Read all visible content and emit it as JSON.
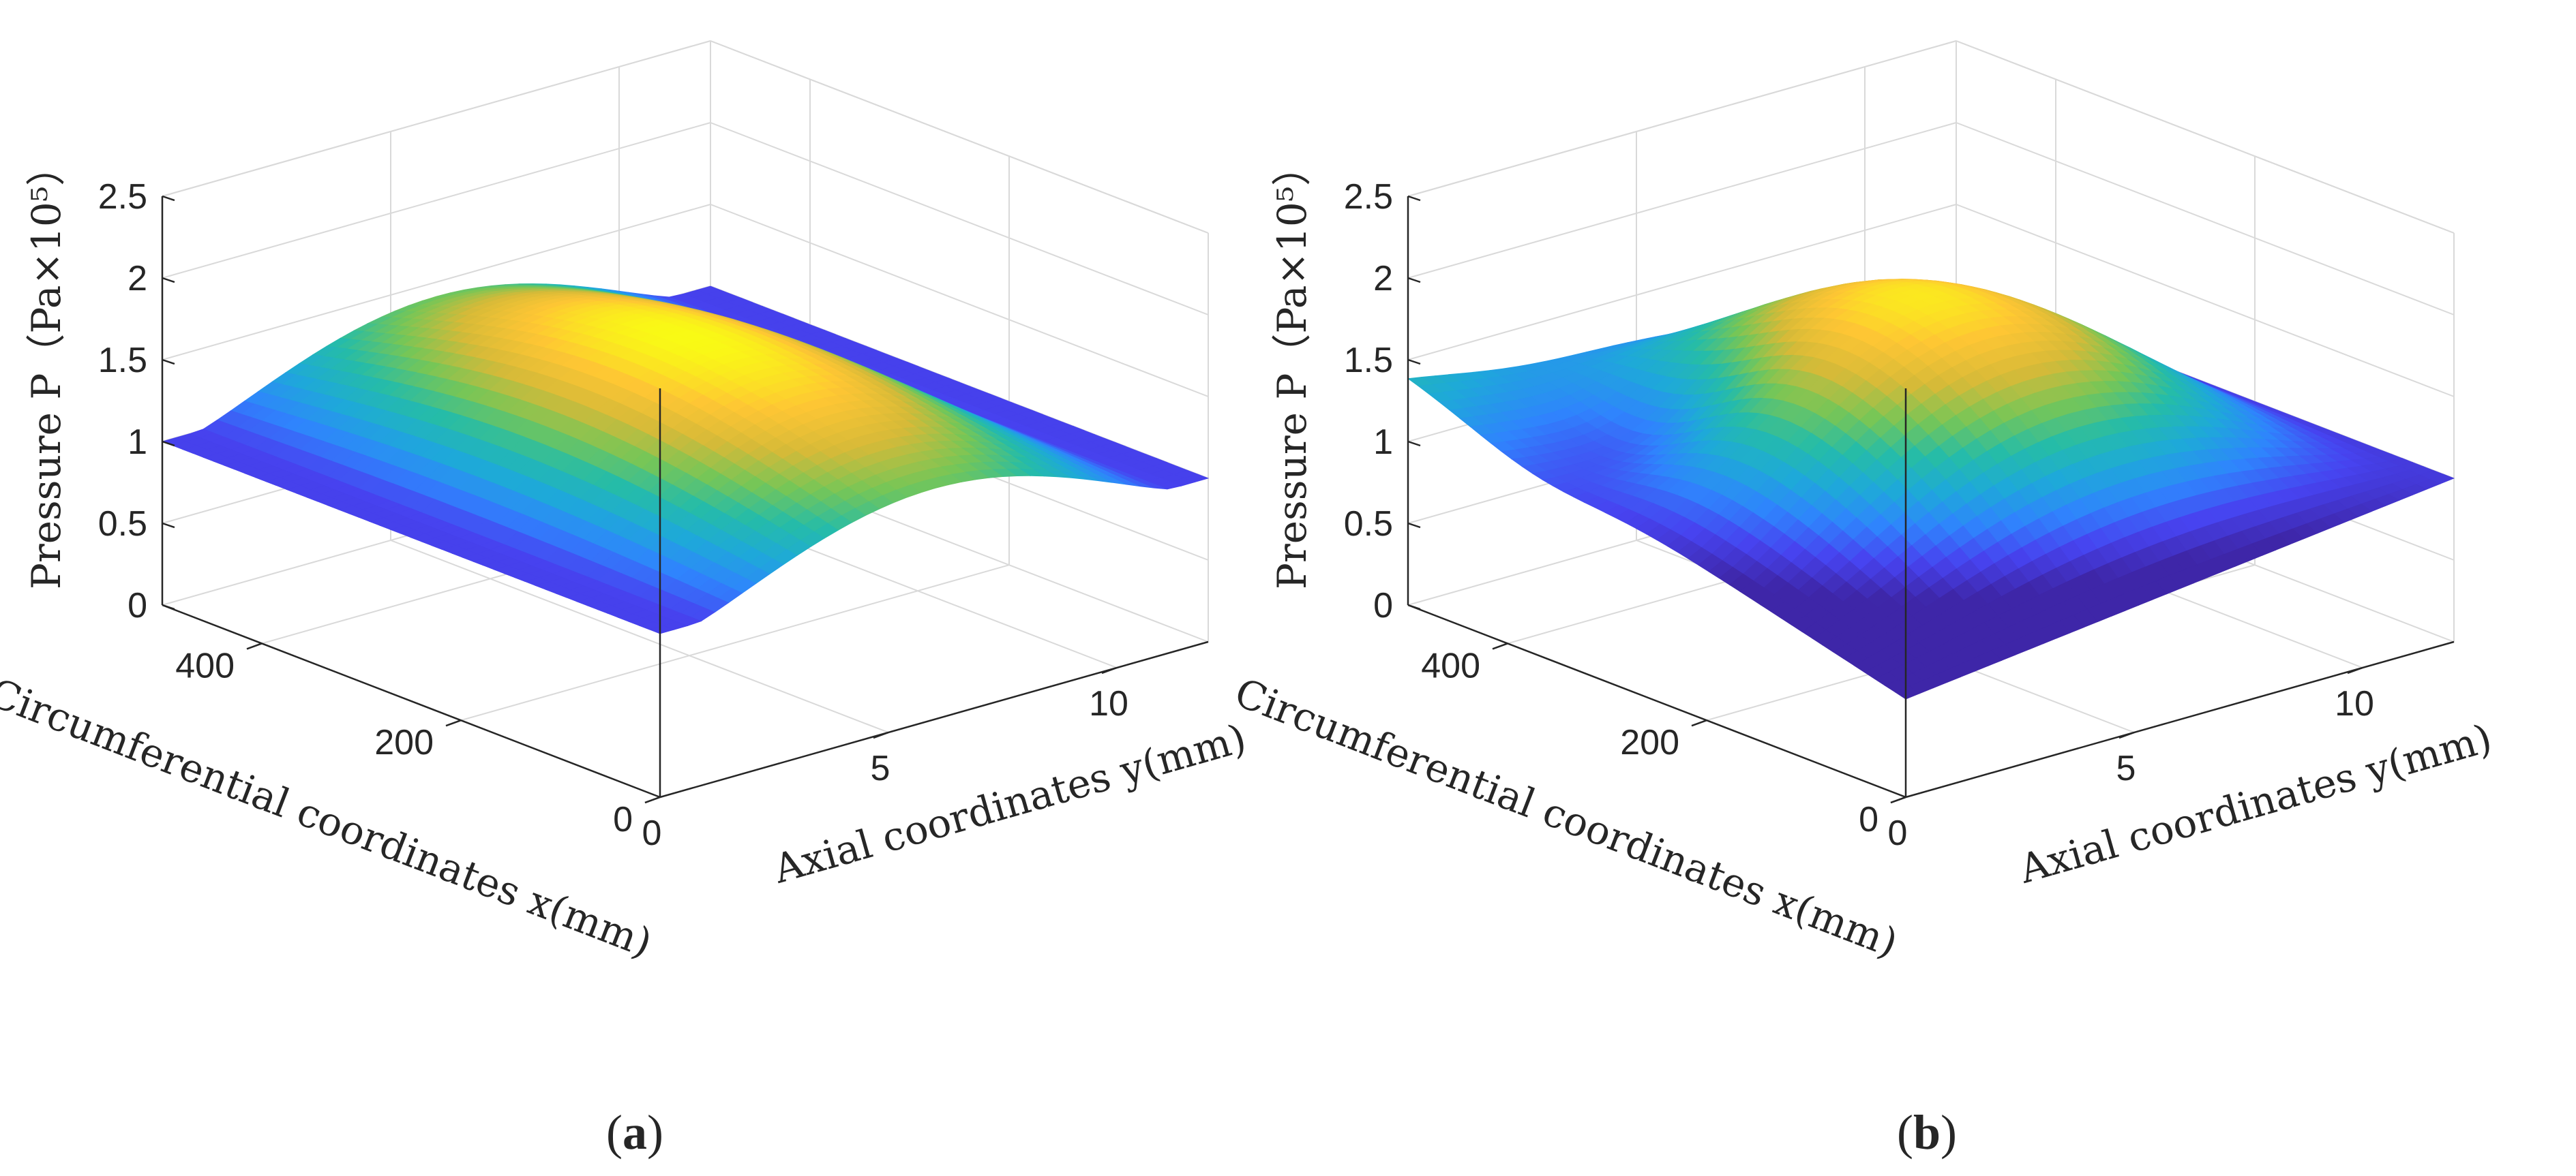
{
  "figure": {
    "panels": [
      {
        "id": "a",
        "caption_open": "(",
        "caption_letter": "a",
        "caption_close": ")"
      },
      {
        "id": "b",
        "caption_open": "(",
        "caption_letter": "b",
        "caption_close": ")"
      }
    ]
  },
  "colors": {
    "colormap": [
      "#3e26a8",
      "#4743f0",
      "#2f84fd",
      "#1ea9d9",
      "#25bca8",
      "#76c657",
      "#d6ba38",
      "#fec634",
      "#f9fb14"
    ],
    "grid": "#d9d9d9",
    "axis": "#262626"
  },
  "chart_data": [
    {
      "type": "surface",
      "panel": "a",
      "zlabel": "Pressure P（Pa×10⁵）",
      "xlabel": "Circumferential coordinates x(mm)",
      "ylabel": "Axial coordinates y(mm)",
      "xlim": [
        0,
        500
      ],
      "ylim": [
        0,
        12
      ],
      "zlim": [
        0,
        2.5
      ],
      "xticks": [
        "0",
        "200",
        "400"
      ],
      "xtick_values": [
        0,
        200,
        400
      ],
      "yticks": [
        "0",
        "5",
        "10"
      ],
      "ytick_values": [
        0,
        5,
        10
      ],
      "zticks": [
        "0",
        "0.5",
        "1",
        "1.5",
        "2",
        "2.5"
      ],
      "ztick_values": [
        0,
        0.5,
        1,
        1.5,
        2,
        2.5
      ],
      "ambient_pressure": 1.0,
      "peak_pressure": 1.75,
      "peak_location": {
        "x": 250,
        "y": 7
      },
      "pressurized_zone": {
        "x_start": 0,
        "x_end": 500,
        "y_start": 1,
        "y_end": 11
      },
      "grid": true
    },
    {
      "type": "surface",
      "panel": "b",
      "zlabel": "Pressure P（Pa×10⁵）",
      "xlabel": "Circumferential coordinates x(mm)",
      "ylabel": "Axial coordinates y(mm)",
      "xlim": [
        0,
        500
      ],
      "ylim": [
        0,
        12
      ],
      "zlim": [
        0,
        2.5
      ],
      "xticks": [
        "0",
        "200",
        "400"
      ],
      "xtick_values": [
        0,
        200,
        400
      ],
      "yticks": [
        "0",
        "5",
        "10"
      ],
      "ytick_values": [
        0,
        5,
        10
      ],
      "zticks": [
        "0",
        "0.5",
        "1",
        "1.5",
        "2",
        "2.5"
      ],
      "ztick_values": [
        0,
        0.5,
        1,
        1.5,
        2,
        2.5
      ],
      "ambient_pressure": 1.0,
      "peak_pressure": 2.0,
      "min_pressure": 0.7,
      "peak_location": {
        "x": 250,
        "y": 7
      },
      "max_corner_pressure": 1.8,
      "grid": true
    }
  ]
}
